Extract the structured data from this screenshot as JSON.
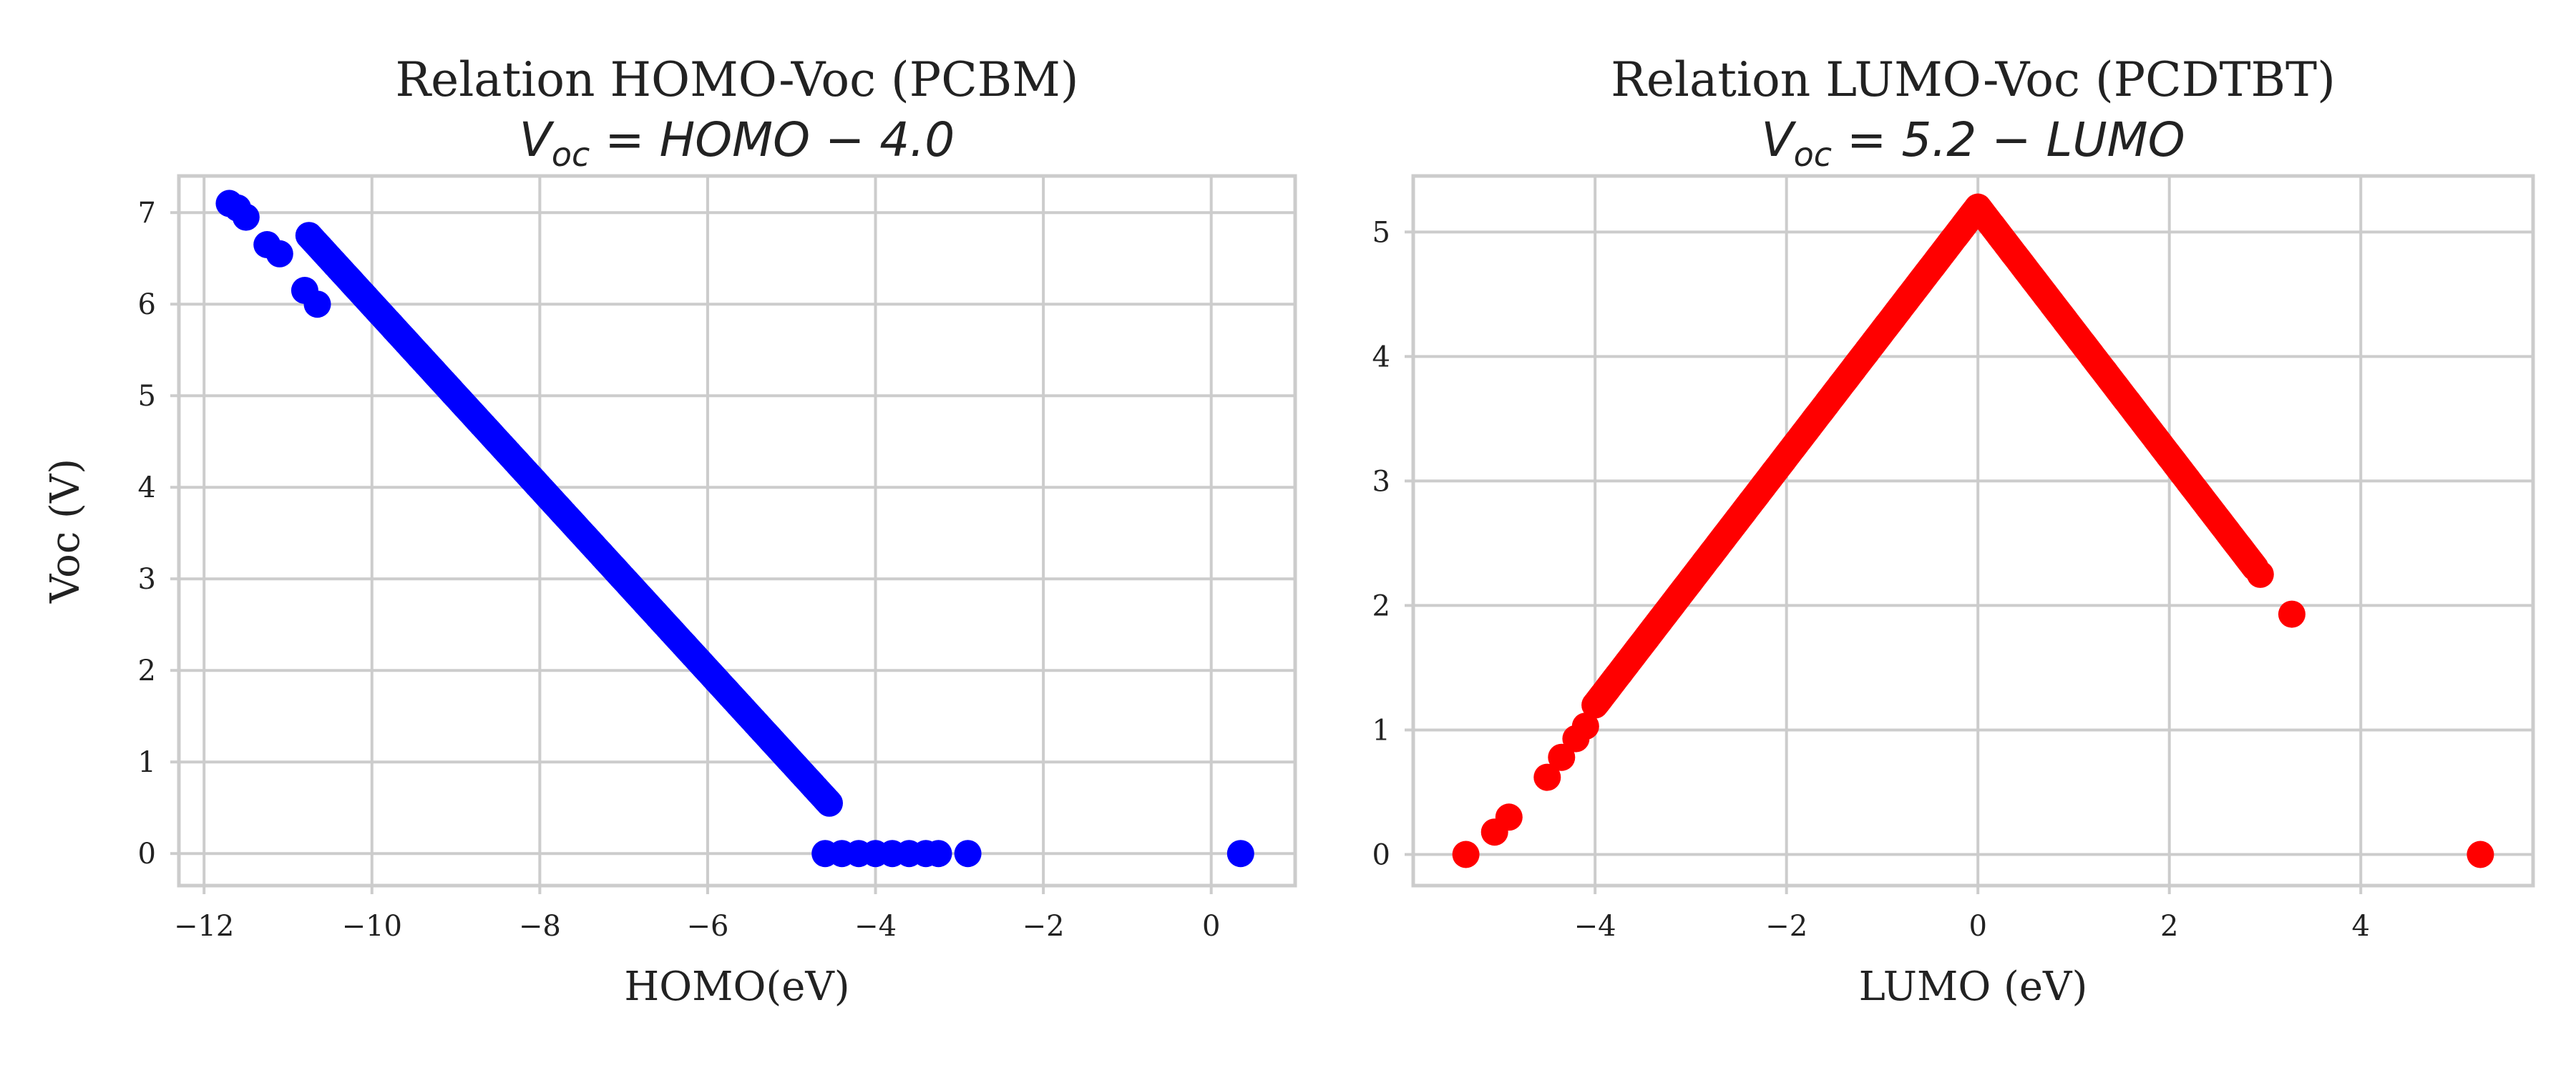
{
  "chart_data": [
    {
      "type": "scatter",
      "title": "Relation HOMO-Voc (PCBM)",
      "subtitle": "V_oc = HOMO − 4.0",
      "subtitle_parts": {
        "v": "V",
        "sub": "oc",
        "rest": " = HOMO − 4.0"
      },
      "xlabel": "HOMO(eV)",
      "ylabel": "Voc (V)",
      "xlim": [
        -12.3,
        1.0
      ],
      "ylim": [
        -0.35,
        7.4
      ],
      "xticks": [
        -12,
        -10,
        -8,
        -6,
        -4,
        -2,
        0
      ],
      "xtick_labels": [
        "−12",
        "−10",
        "−8",
        "−6",
        "−4",
        "−2",
        "0"
      ],
      "yticks": [
        0,
        1,
        2,
        3,
        4,
        5,
        6,
        7
      ],
      "ytick_labels": [
        "0",
        "1",
        "2",
        "3",
        "4",
        "5",
        "6",
        "7"
      ],
      "grid": true,
      "series": [
        {
          "color": "#0000ff",
          "points": [
            [
              -11.7,
              7.1
            ],
            [
              -11.6,
              7.05
            ],
            [
              -11.5,
              6.95
            ],
            [
              -11.25,
              6.65
            ],
            [
              -11.1,
              6.55
            ],
            [
              -10.8,
              6.15
            ],
            [
              -10.65,
              6.0
            ],
            [
              -4.6,
              0.0
            ],
            [
              -4.4,
              0.0
            ],
            [
              -4.2,
              0.0
            ],
            [
              -4.0,
              0.0
            ],
            [
              -3.8,
              0.0
            ],
            [
              -3.6,
              0.0
            ],
            [
              -3.4,
              0.0
            ],
            [
              -3.25,
              0.0
            ],
            [
              -2.9,
              0.0
            ],
            [
              0.35,
              0.0
            ]
          ],
          "dense_segments": [
            {
              "x0": -10.75,
              "x1": -4.55,
              "step": 0.02,
              "fn": "homo_minus_4"
            }
          ]
        }
      ]
    },
    {
      "type": "scatter",
      "title": "Relation LUMO-Voc (PCDTBT)",
      "subtitle": "V_oc = 5.2 − LUMO",
      "subtitle_parts": {
        "v": "V",
        "sub": "oc",
        "rest": " = 5.2 − LUMO"
      },
      "xlabel": "LUMO (eV)",
      "ylabel": "",
      "xlim": [
        -5.9,
        5.8
      ],
      "ylim": [
        -0.25,
        5.45
      ],
      "xticks": [
        -4,
        -2,
        0,
        2,
        4
      ],
      "xtick_labels": [
        "−4",
        "−2",
        "0",
        "2",
        "4"
      ],
      "yticks": [
        0,
        1,
        2,
        3,
        4,
        5
      ],
      "ytick_labels": [
        "0",
        "1",
        "2",
        "3",
        "4",
        "5"
      ],
      "grid": true,
      "series": [
        {
          "color": "#ff0000",
          "points": [
            [
              -5.35,
              0.0
            ],
            [
              -5.05,
              0.18
            ],
            [
              -4.9,
              0.3
            ],
            [
              -4.5,
              0.62
            ],
            [
              -4.35,
              0.78
            ],
            [
              -4.2,
              0.93
            ],
            [
              -4.1,
              1.03
            ],
            [
              2.95,
              2.25
            ],
            [
              3.28,
              1.93
            ],
            [
              5.25,
              0.0
            ]
          ],
          "dense_segments": [
            {
              "x0": -4.0,
              "x1": 0.0,
              "step": 0.015,
              "fn": "abs_shape"
            },
            {
              "x0": 0.0,
              "x1": 2.9,
              "step": 0.015,
              "fn": "abs_shape"
            }
          ]
        }
      ]
    }
  ]
}
